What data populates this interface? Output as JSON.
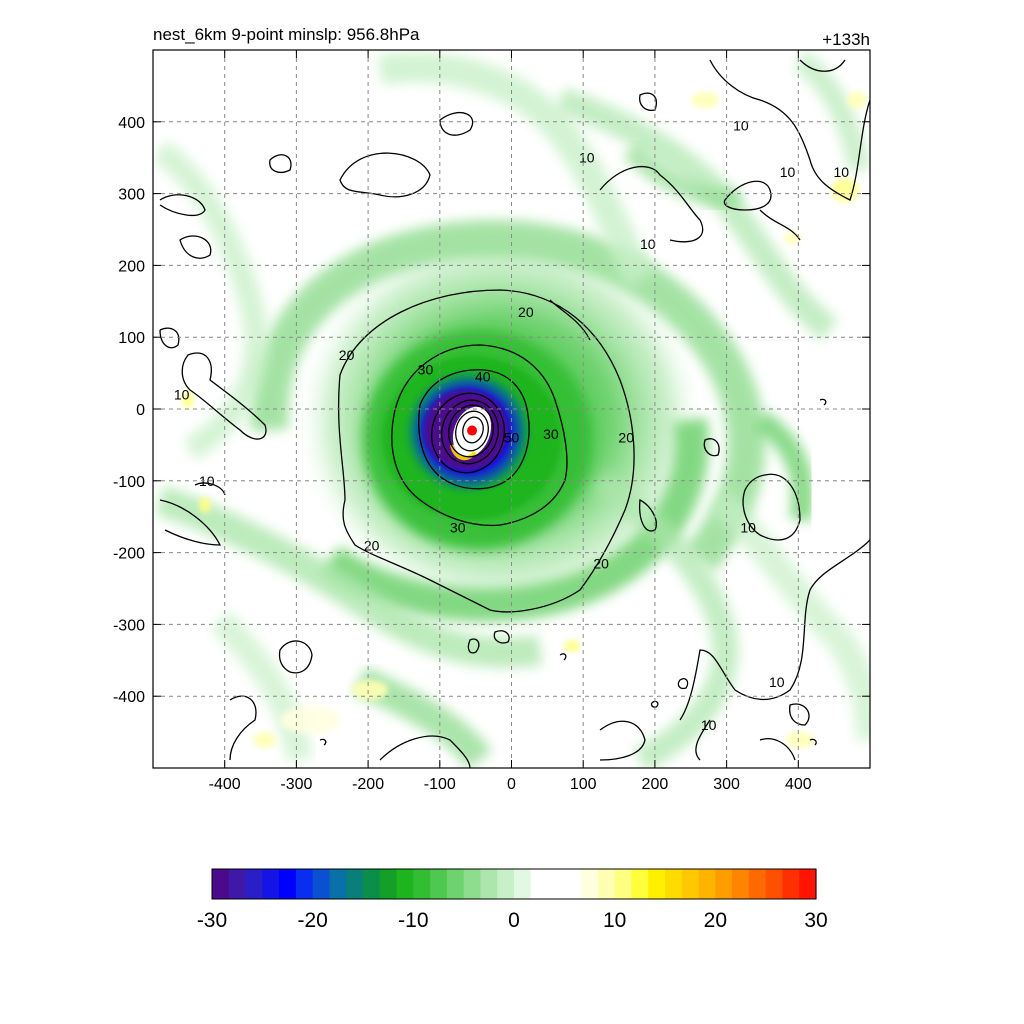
{
  "chart_data": {
    "type": "heatmap",
    "title_left": "nest_6km  9-point minslp: 956.8hPa",
    "title_right": "+133h",
    "x_range": [
      -500,
      500
    ],
    "y_range": [
      -500,
      500
    ],
    "x_ticks": [
      -400,
      -300,
      -200,
      -100,
      0,
      100,
      200,
      300,
      400
    ],
    "y_ticks": [
      400,
      300,
      200,
      100,
      0,
      -100,
      -200,
      -300,
      -400
    ],
    "grid": true,
    "center_marker": {
      "x": -55,
      "y": -30,
      "color": "#ff0000"
    },
    "filled_field": {
      "description_units": "shaded",
      "colorbar": {
        "min": -30,
        "max": 30,
        "tick_values": [
          -30,
          -20,
          -10,
          0,
          10,
          20,
          30
        ],
        "tick_labels": [
          "-30",
          "-20",
          "-10",
          "0",
          "10",
          "20",
          "30"
        ],
        "colors": [
          "#4b0a8c",
          "#3f18a8",
          "#2a1ec8",
          "#1414e6",
          "#0000ff",
          "#0a2ef0",
          "#0a50d2",
          "#0a70aa",
          "#0a7f7a",
          "#0a8f4a",
          "#14a028",
          "#1eb41e",
          "#32be32",
          "#4ec84e",
          "#6ed26e",
          "#8edc8e",
          "#acE6ac",
          "#c8f0c8",
          "#e2f8e2",
          "#ffffff",
          "#ffffff",
          "#ffffff",
          "#ffffe0",
          "#ffffb4",
          "#ffff82",
          "#ffff3c",
          "#fff000",
          "#ffdc00",
          "#ffc800",
          "#ffb400",
          "#ff9c00",
          "#ff8400",
          "#ff6a00",
          "#ff5000",
          "#ff3000",
          "#ff1400"
        ]
      }
    },
    "contours": {
      "levels": [
        10,
        20,
        30,
        40,
        50
      ],
      "labels": [
        {
          "text": "10",
          "x": 105,
          "y": 350
        },
        {
          "text": "10",
          "x": 320,
          "y": 395
        },
        {
          "text": "10",
          "x": 385,
          "y": 330
        },
        {
          "text": "10",
          "x": 460,
          "y": 330
        },
        {
          "text": "10",
          "x": 190,
          "y": 230
        },
        {
          "text": "10",
          "x": -460,
          "y": 20
        },
        {
          "text": "10",
          "x": -425,
          "y": -100
        },
        {
          "text": "10",
          "x": 330,
          "y": -165
        },
        {
          "text": "10",
          "x": 370,
          "y": -380
        },
        {
          "text": "10",
          "x": 275,
          "y": -440
        },
        {
          "text": "20",
          "x": 20,
          "y": 135
        },
        {
          "text": "20",
          "x": -230,
          "y": 75
        },
        {
          "text": "20",
          "x": 160,
          "y": -40
        },
        {
          "text": "20",
          "x": -195,
          "y": -190
        },
        {
          "text": "20",
          "x": 125,
          "y": -215
        },
        {
          "text": "30",
          "x": -120,
          "y": 55
        },
        {
          "text": "30",
          "x": 55,
          "y": -35
        },
        {
          "text": "30",
          "x": -75,
          "y": -165
        },
        {
          "text": "40",
          "x": -40,
          "y": 45
        },
        {
          "text": "50",
          "x": 0,
          "y": -40
        }
      ]
    }
  }
}
